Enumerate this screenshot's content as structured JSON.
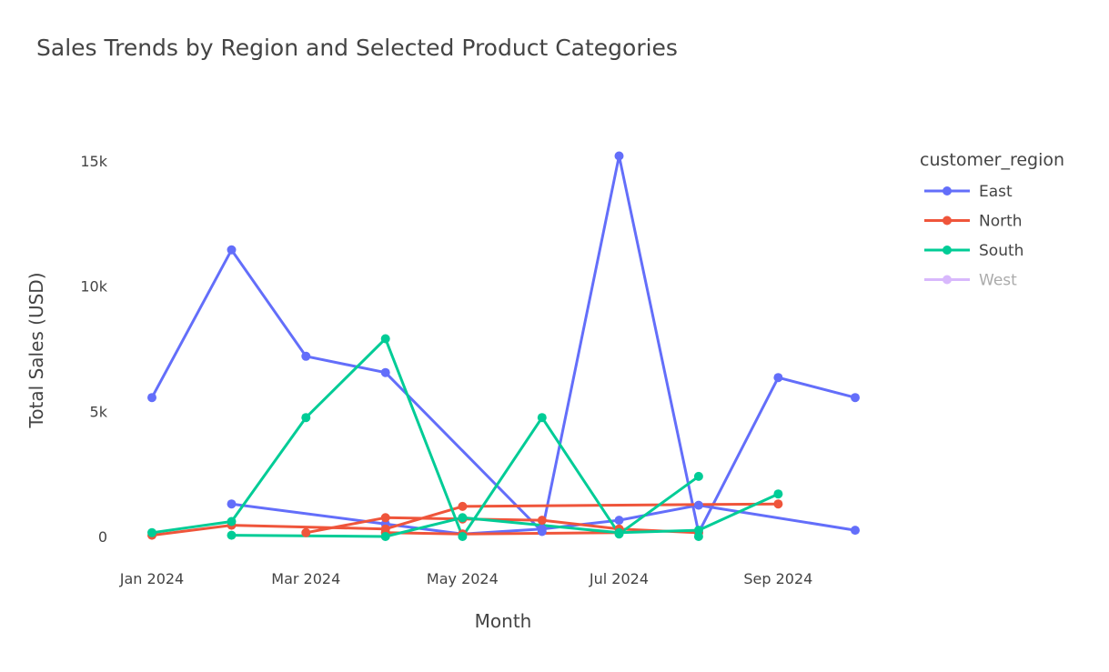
{
  "chart_data": {
    "type": "line",
    "title": "Sales Trends by Region and Selected Product Categories",
    "xlabel": "Month",
    "ylabel": "Total Sales (USD)",
    "x_tick_labels": [
      "Jan 2024",
      "Mar 2024",
      "May 2024",
      "Jul 2024",
      "Sep 2024"
    ],
    "y_tick_labels": [
      "0",
      "5k",
      "10k",
      "15k"
    ],
    "y_ticks": [
      0,
      5000,
      10000,
      15000
    ],
    "legend": {
      "title": "customer_region",
      "placement": "top-right"
    },
    "xlim": [
      "2024-01-01",
      "2024-10-01"
    ],
    "ylim": [
      -800,
      15800
    ],
    "series": [
      {
        "name": "East",
        "color": "#636efa",
        "hidden": false,
        "lines": [
          [
            [
              "2024-01-01",
              5550
            ],
            [
              "2024-02-01",
              11450
            ],
            [
              "2024-03-01",
              7200
            ],
            [
              "2024-04-01",
              6550
            ],
            [
              "2024-06-01",
              200
            ],
            [
              "2024-07-01",
              15200
            ],
            [
              "2024-08-01",
              150
            ],
            [
              "2024-09-01",
              6350
            ],
            [
              "2024-10-01",
              5550
            ]
          ],
          [
            [
              "2024-02-01",
              1300
            ],
            [
              "2024-04-01",
              500
            ],
            [
              "2024-05-01",
              100
            ],
            [
              "2024-06-01",
              300
            ],
            [
              "2024-07-01",
              650
            ],
            [
              "2024-08-01",
              1250
            ],
            [
              "2024-10-01",
              250
            ]
          ]
        ]
      },
      {
        "name": "North",
        "color": "#ef553b",
        "hidden": false,
        "lines": [
          [
            [
              "2024-01-01",
              50
            ],
            [
              "2024-02-01",
              450
            ],
            [
              "2024-04-01",
              300
            ],
            [
              "2024-05-01",
              1200
            ],
            [
              "2024-09-01",
              1300
            ]
          ],
          [
            [
              "2024-03-01",
              150
            ],
            [
              "2024-04-01",
              750
            ],
            [
              "2024-05-01",
              700
            ],
            [
              "2024-06-01",
              650
            ],
            [
              "2024-07-01",
              300
            ],
            [
              "2024-08-01",
              150
            ]
          ],
          [
            [
              "2024-04-01",
              150
            ],
            [
              "2024-05-01",
              100
            ],
            [
              "2024-07-01",
              150
            ]
          ]
        ]
      },
      {
        "name": "South",
        "color": "#00cc96",
        "hidden": false,
        "lines": [
          [
            [
              "2024-01-01",
              150
            ],
            [
              "2024-02-01",
              600
            ],
            [
              "2024-03-01",
              4750
            ],
            [
              "2024-04-01",
              7900
            ],
            [
              "2024-05-01",
              0
            ],
            [
              "2024-06-01",
              4750
            ],
            [
              "2024-07-01",
              100
            ],
            [
              "2024-08-01",
              2400
            ]
          ],
          [
            [
              "2024-02-01",
              50
            ],
            [
              "2024-04-01",
              0
            ],
            [
              "2024-05-01",
              750
            ],
            [
              "2024-07-01",
              150
            ],
            [
              "2024-08-01",
              250
            ],
            [
              "2024-09-01",
              1700
            ]
          ],
          [
            [
              "2024-08-01",
              0
            ]
          ]
        ]
      },
      {
        "name": "West",
        "color": "#ab63fa",
        "hidden": true,
        "lines": []
      }
    ]
  }
}
